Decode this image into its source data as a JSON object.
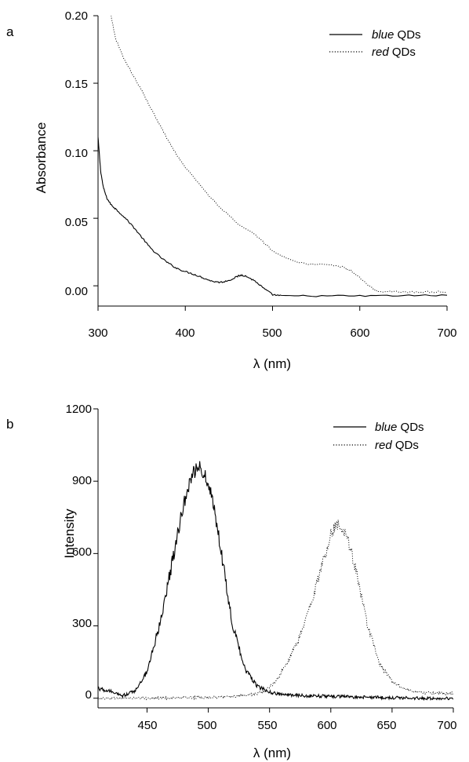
{
  "chart_data": [
    {
      "panel": "a",
      "type": "line",
      "xlabel": "λ (nm)",
      "ylabel": "Absorbance",
      "xlim": [
        300,
        700
      ],
      "ylim": [
        -0.015,
        0.2
      ],
      "xticks": [
        "300",
        "400",
        "500",
        "600",
        "700"
      ],
      "yticks": [
        "0.00",
        "0.05",
        "0.10",
        "0.15",
        "0.20"
      ],
      "legend_position": "top-right",
      "series": [
        {
          "name_italic": "blue",
          "name_rest": " QDs",
          "style": "solid",
          "x": [
            300,
            303,
            306,
            310,
            315,
            320,
            330,
            340,
            350,
            360,
            370,
            380,
            390,
            400,
            410,
            420,
            430,
            440,
            450,
            460,
            465,
            470,
            480,
            490,
            500,
            510,
            550,
            600,
            650,
            700
          ],
          "y": [
            0.11,
            0.085,
            0.073,
            0.065,
            0.06,
            0.057,
            0.051,
            0.044,
            0.036,
            0.028,
            0.022,
            0.017,
            0.013,
            0.0105,
            0.0085,
            0.006,
            0.0035,
            0.0025,
            0.004,
            0.007,
            0.008,
            0.007,
            0.0035,
            -0.002,
            -0.0065,
            -0.0075,
            -0.0075,
            -0.0075,
            -0.0073,
            -0.007
          ]
        },
        {
          "name_italic": "red",
          "name_rest": " QDs",
          "style": "dotted",
          "x": [
            315,
            320,
            330,
            340,
            350,
            360,
            370,
            380,
            390,
            400,
            420,
            440,
            460,
            480,
            490,
            500,
            520,
            540,
            560,
            580,
            590,
            600,
            610,
            620,
            640,
            660,
            680,
            700
          ],
          "y": [
            0.2,
            0.183,
            0.168,
            0.156,
            0.145,
            0.132,
            0.12,
            0.108,
            0.097,
            0.088,
            0.072,
            0.058,
            0.046,
            0.038,
            0.032,
            0.026,
            0.019,
            0.016,
            0.0155,
            0.014,
            0.011,
            0.006,
            0.0,
            -0.004,
            -0.0045,
            -0.0045,
            -0.0045,
            -0.0045
          ]
        }
      ]
    },
    {
      "panel": "b",
      "type": "line",
      "xlabel": "λ (nm)",
      "ylabel": "Intensity",
      "xlim": [
        410,
        700
      ],
      "ylim": [
        -40,
        1200
      ],
      "xticks": [
        "450",
        "500",
        "550",
        "600",
        "650",
        "700"
      ],
      "yticks": [
        "0",
        "300",
        "600",
        "900",
        "1200"
      ],
      "legend_position": "top-right",
      "series": [
        {
          "name_italic": "blue",
          "name_rest": " QDs",
          "style": "solid",
          "x": [
            410,
            420,
            430,
            440,
            450,
            460,
            470,
            475,
            480,
            485,
            490,
            495,
            500,
            505,
            510,
            515,
            520,
            530,
            540,
            550,
            560,
            580,
            600,
            620,
            650,
            680,
            700
          ],
          "y": [
            40,
            28,
            10,
            30,
            110,
            300,
            550,
            690,
            810,
            900,
            955,
            950,
            900,
            780,
            620,
            460,
            300,
            120,
            50,
            25,
            15,
            10,
            8,
            5,
            2,
            0,
            0
          ],
          "jitter": 25
        },
        {
          "name_italic": "red",
          "name_rest": " QDs",
          "style": "dotted",
          "x": [
            410,
            450,
            500,
            530,
            545,
            555,
            565,
            575,
            585,
            590,
            595,
            600,
            605,
            610,
            615,
            620,
            625,
            630,
            640,
            650,
            660,
            670,
            690,
            700
          ],
          "y": [
            0,
            0,
            3,
            10,
            25,
            70,
            150,
            260,
            410,
            500,
            590,
            680,
            720,
            710,
            640,
            540,
            420,
            300,
            140,
            70,
            40,
            25,
            20,
            20
          ],
          "jitter": 20
        }
      ]
    }
  ]
}
